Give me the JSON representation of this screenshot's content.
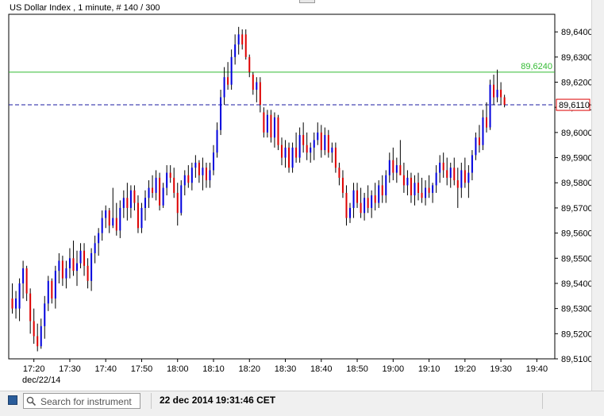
{
  "header": {
    "title": "US Dollar Index , 1 minute, # 140 / 300"
  },
  "toolbar": {
    "search_placeholder": "Search for instrument",
    "timestamp": "22 dec 2014 19:31:46 CET"
  },
  "chart_data": {
    "type": "candlestick",
    "y_ticks": [
      "89,6400",
      "89,6300",
      "89,6200",
      "89,6100",
      "89,6000",
      "89,5900",
      "89,5800",
      "89,5700",
      "89,5600",
      "89,5500",
      "89,5400",
      "89,5300",
      "89,5200",
      "89,5100"
    ],
    "y_tick_values": [
      89.64,
      89.63,
      89.62,
      89.61,
      89.6,
      89.59,
      89.58,
      89.57,
      89.56,
      89.55,
      89.54,
      89.53,
      89.52,
      89.51
    ],
    "ylim": [
      89.51,
      89.647
    ],
    "x_ticks": [
      "17:20",
      "17:30",
      "17:40",
      "17:50",
      "18:00",
      "18:10",
      "18:20",
      "18:30",
      "18:40",
      "18:50",
      "19:00",
      "19:10",
      "19:20",
      "19:30",
      "19:40"
    ],
    "x_date_label": "dec/22/14",
    "time_start": "17:13",
    "time_end": "19:45",
    "grid": false,
    "colors": {
      "up": "#0000dd",
      "down": "#dd0000",
      "level": "#33bb33",
      "current": "#1a1aa0",
      "axis": "#000000"
    },
    "horizontal_level": {
      "value": 89.624,
      "label": "89,6240"
    },
    "current_price": {
      "value": 89.611,
      "label": "89,6110"
    },
    "candles": [
      {
        "t": "17:14",
        "o": 89.534,
        "h": 89.54,
        "l": 89.528,
        "c": 89.53
      },
      {
        "t": "17:15",
        "o": 89.53,
        "h": 89.537,
        "l": 89.526,
        "c": 89.534
      },
      {
        "t": "17:16",
        "o": 89.53,
        "h": 89.542,
        "l": 89.525,
        "c": 89.54
      },
      {
        "t": "17:17",
        "o": 89.54,
        "h": 89.549,
        "l": 89.534,
        "c": 89.546
      },
      {
        "t": "17:18",
        "o": 89.546,
        "h": 89.547,
        "l": 89.533,
        "c": 89.536
      },
      {
        "t": "17:19",
        "o": 89.536,
        "h": 89.538,
        "l": 89.52,
        "c": 89.525
      },
      {
        "t": "17:20",
        "o": 89.525,
        "h": 89.53,
        "l": 89.516,
        "c": 89.519
      },
      {
        "t": "17:21",
        "o": 89.519,
        "h": 89.524,
        "l": 89.513,
        "c": 89.515
      },
      {
        "t": "17:22",
        "o": 89.515,
        "h": 89.526,
        "l": 89.514,
        "c": 89.523
      },
      {
        "t": "17:23",
        "o": 89.523,
        "h": 89.535,
        "l": 89.518,
        "c": 89.532
      },
      {
        "t": "17:24",
        "o": 89.532,
        "h": 89.543,
        "l": 89.529,
        "c": 89.541
      },
      {
        "t": "17:25",
        "o": 89.541,
        "h": 89.542,
        "l": 89.532,
        "c": 89.534
      },
      {
        "t": "17:26",
        "o": 89.534,
        "h": 89.547,
        "l": 89.53,
        "c": 89.545
      },
      {
        "t": "17:27",
        "o": 89.545,
        "h": 89.552,
        "l": 89.54,
        "c": 89.549
      },
      {
        "t": "17:28",
        "o": 89.549,
        "h": 89.551,
        "l": 89.539,
        "c": 89.542
      },
      {
        "t": "17:29",
        "o": 89.542,
        "h": 89.549,
        "l": 89.538,
        "c": 89.546
      },
      {
        "t": "17:30",
        "o": 89.546,
        "h": 89.554,
        "l": 89.542,
        "c": 89.55
      },
      {
        "t": "17:31",
        "o": 89.55,
        "h": 89.557,
        "l": 89.543,
        "c": 89.545
      },
      {
        "t": "17:32",
        "o": 89.545,
        "h": 89.553,
        "l": 89.539,
        "c": 89.548
      },
      {
        "t": "17:33",
        "o": 89.548,
        "h": 89.556,
        "l": 89.546,
        "c": 89.553
      },
      {
        "t": "17:34",
        "o": 89.553,
        "h": 89.556,
        "l": 89.543,
        "c": 89.547
      },
      {
        "t": "17:35",
        "o": 89.547,
        "h": 89.55,
        "l": 89.538,
        "c": 89.541
      },
      {
        "t": "17:36",
        "o": 89.541,
        "h": 89.554,
        "l": 89.537,
        "c": 89.552
      },
      {
        "t": "17:37",
        "o": 89.552,
        "h": 89.559,
        "l": 89.548,
        "c": 89.556
      },
      {
        "t": "17:38",
        "o": 89.556,
        "h": 89.562,
        "l": 89.551,
        "c": 89.56
      },
      {
        "t": "17:39",
        "o": 89.56,
        "h": 89.569,
        "l": 89.557,
        "c": 89.566
      },
      {
        "t": "17:40",
        "o": 89.566,
        "h": 89.571,
        "l": 89.562,
        "c": 89.569
      },
      {
        "t": "17:41",
        "o": 89.569,
        "h": 89.57,
        "l": 89.56,
        "c": 89.563
      },
      {
        "t": "17:42",
        "o": 89.563,
        "h": 89.578,
        "l": 89.562,
        "c": 89.566
      },
      {
        "t": "17:43",
        "o": 89.566,
        "h": 89.572,
        "l": 89.559,
        "c": 89.561
      },
      {
        "t": "17:44",
        "o": 89.561,
        "h": 89.573,
        "l": 89.558,
        "c": 89.57
      },
      {
        "t": "17:45",
        "o": 89.57,
        "h": 89.577,
        "l": 89.566,
        "c": 89.574
      },
      {
        "t": "17:46",
        "o": 89.574,
        "h": 89.58,
        "l": 89.565,
        "c": 89.57
      },
      {
        "t": "17:47",
        "o": 89.57,
        "h": 89.579,
        "l": 89.566,
        "c": 89.577
      },
      {
        "t": "17:48",
        "o": 89.577,
        "h": 89.579,
        "l": 89.569,
        "c": 89.572
      },
      {
        "t": "17:49",
        "o": 89.572,
        "h": 89.575,
        "l": 89.56,
        "c": 89.562
      },
      {
        "t": "17:50",
        "o": 89.562,
        "h": 89.572,
        "l": 89.56,
        "c": 89.57
      },
      {
        "t": "17:51",
        "o": 89.57,
        "h": 89.577,
        "l": 89.565,
        "c": 89.574
      },
      {
        "t": "17:52",
        "o": 89.574,
        "h": 89.581,
        "l": 89.57,
        "c": 89.578
      },
      {
        "t": "17:53",
        "o": 89.578,
        "h": 89.583,
        "l": 89.574,
        "c": 89.576
      },
      {
        "t": "17:54",
        "o": 89.576,
        "h": 89.585,
        "l": 89.573,
        "c": 89.582
      },
      {
        "t": "17:55",
        "o": 89.582,
        "h": 89.584,
        "l": 89.569,
        "c": 89.571
      },
      {
        "t": "17:56",
        "o": 89.571,
        "h": 89.58,
        "l": 89.57,
        "c": 89.578
      },
      {
        "t": "17:57",
        "o": 89.578,
        "h": 89.587,
        "l": 89.575,
        "c": 89.584
      },
      {
        "t": "17:58",
        "o": 89.584,
        "h": 89.587,
        "l": 89.58,
        "c": 89.582
      },
      {
        "t": "17:59",
        "o": 89.582,
        "h": 89.586,
        "l": 89.574,
        "c": 89.576
      },
      {
        "t": "18:00",
        "o": 89.576,
        "h": 89.58,
        "l": 89.563,
        "c": 89.568
      },
      {
        "t": "18:01",
        "o": 89.568,
        "h": 89.581,
        "l": 89.567,
        "c": 89.579
      },
      {
        "t": "18:02",
        "o": 89.579,
        "h": 89.585,
        "l": 89.575,
        "c": 89.583
      },
      {
        "t": "18:03",
        "o": 89.583,
        "h": 89.587,
        "l": 89.578,
        "c": 89.58
      },
      {
        "t": "18:04",
        "o": 89.58,
        "h": 89.588,
        "l": 89.577,
        "c": 89.586
      },
      {
        "t": "18:05",
        "o": 89.586,
        "h": 89.591,
        "l": 89.582,
        "c": 89.588
      },
      {
        "t": "18:06",
        "o": 89.588,
        "h": 89.589,
        "l": 89.58,
        "c": 89.583
      },
      {
        "t": "18:07",
        "o": 89.583,
        "h": 89.59,
        "l": 89.577,
        "c": 89.586
      },
      {
        "t": "18:08",
        "o": 89.586,
        "h": 89.588,
        "l": 89.578,
        "c": 89.581
      },
      {
        "t": "18:09",
        "o": 89.581,
        "h": 89.588,
        "l": 89.578,
        "c": 89.585
      },
      {
        "t": "18:10",
        "o": 89.585,
        "h": 89.595,
        "l": 89.583,
        "c": 89.592
      },
      {
        "t": "18:11",
        "o": 89.592,
        "h": 89.604,
        "l": 89.59,
        "c": 89.601
      },
      {
        "t": "18:12",
        "o": 89.601,
        "h": 89.617,
        "l": 89.599,
        "c": 89.614
      },
      {
        "t": "18:13",
        "o": 89.614,
        "h": 89.626,
        "l": 89.611,
        "c": 89.622
      },
      {
        "t": "18:14",
        "o": 89.622,
        "h": 89.628,
        "l": 89.617,
        "c": 89.619
      },
      {
        "t": "18:15",
        "o": 89.619,
        "h": 89.633,
        "l": 89.617,
        "c": 89.63
      },
      {
        "t": "18:16",
        "o": 89.63,
        "h": 89.639,
        "l": 89.627,
        "c": 89.635
      },
      {
        "t": "18:17",
        "o": 89.635,
        "h": 89.642,
        "l": 89.631,
        "c": 89.639
      },
      {
        "t": "18:18",
        "o": 89.639,
        "h": 89.641,
        "l": 89.633,
        "c": 89.635
      },
      {
        "t": "18:19",
        "o": 89.639,
        "h": 89.641,
        "l": 89.629,
        "c": 89.63
      },
      {
        "t": "18:20",
        "o": 89.63,
        "h": 89.631,
        "l": 89.622,
        "c": 89.624
      },
      {
        "t": "18:21",
        "o": 89.623,
        "h": 89.624,
        "l": 89.615,
        "c": 89.617
      },
      {
        "t": "18:22",
        "o": 89.617,
        "h": 89.622,
        "l": 89.612,
        "c": 89.62
      },
      {
        "t": "18:23",
        "o": 89.62,
        "h": 89.622,
        "l": 89.608,
        "c": 89.611
      },
      {
        "t": "18:24",
        "o": 89.608,
        "h": 89.61,
        "l": 89.598,
        "c": 89.6
      },
      {
        "t": "18:25",
        "o": 89.6,
        "h": 89.609,
        "l": 89.598,
        "c": 89.607
      },
      {
        "t": "18:26",
        "o": 89.607,
        "h": 89.609,
        "l": 89.596,
        "c": 89.598
      },
      {
        "t": "18:27",
        "o": 89.598,
        "h": 89.608,
        "l": 89.594,
        "c": 89.606
      },
      {
        "t": "18:28",
        "o": 89.606,
        "h": 89.607,
        "l": 89.593,
        "c": 89.595
      },
      {
        "t": "18:29",
        "o": 89.595,
        "h": 89.598,
        "l": 89.587,
        "c": 89.59
      },
      {
        "t": "18:30",
        "o": 89.59,
        "h": 89.597,
        "l": 89.586,
        "c": 89.594
      },
      {
        "t": "18:31",
        "o": 89.594,
        "h": 89.596,
        "l": 89.584,
        "c": 89.586
      },
      {
        "t": "18:32",
        "o": 89.586,
        "h": 89.596,
        "l": 89.584,
        "c": 89.594
      },
      {
        "t": "18:33",
        "o": 89.594,
        "h": 89.6,
        "l": 89.588,
        "c": 89.59
      },
      {
        "t": "18:34",
        "o": 89.59,
        "h": 89.602,
        "l": 89.588,
        "c": 89.599
      },
      {
        "t": "18:35",
        "o": 89.599,
        "h": 89.604,
        "l": 89.592,
        "c": 89.595
      },
      {
        "t": "18:36",
        "o": 89.595,
        "h": 89.6,
        "l": 89.589,
        "c": 89.592
      },
      {
        "t": "18:37",
        "o": 89.592,
        "h": 89.596,
        "l": 89.588,
        "c": 89.594
      },
      {
        "t": "18:38",
        "o": 89.594,
        "h": 89.6,
        "l": 89.589,
        "c": 89.597
      },
      {
        "t": "18:39",
        "o": 89.597,
        "h": 89.604,
        "l": 89.595,
        "c": 89.6
      },
      {
        "t": "18:40",
        "o": 89.6,
        "h": 89.603,
        "l": 89.59,
        "c": 89.593
      },
      {
        "t": "18:41",
        "o": 89.593,
        "h": 89.602,
        "l": 89.591,
        "c": 89.599
      },
      {
        "t": "18:42",
        "o": 89.599,
        "h": 89.601,
        "l": 89.59,
        "c": 89.592
      },
      {
        "t": "18:43",
        "o": 89.592,
        "h": 89.596,
        "l": 89.588,
        "c": 89.594
      },
      {
        "t": "18:44",
        "o": 89.594,
        "h": 89.596,
        "l": 89.584,
        "c": 89.586
      },
      {
        "t": "18:45",
        "o": 89.586,
        "h": 89.588,
        "l": 89.579,
        "c": 89.582
      },
      {
        "t": "18:46",
        "o": 89.582,
        "h": 89.585,
        "l": 89.574,
        "c": 89.576
      },
      {
        "t": "18:47",
        "o": 89.576,
        "h": 89.579,
        "l": 89.563,
        "c": 89.566
      },
      {
        "t": "18:48",
        "o": 89.566,
        "h": 89.572,
        "l": 89.564,
        "c": 89.57
      },
      {
        "t": "18:49",
        "o": 89.57,
        "h": 89.58,
        "l": 89.566,
        "c": 89.577
      },
      {
        "t": "18:50",
        "o": 89.577,
        "h": 89.58,
        "l": 89.57,
        "c": 89.572
      },
      {
        "t": "18:51",
        "o": 89.572,
        "h": 89.578,
        "l": 89.566,
        "c": 89.568
      },
      {
        "t": "18:52",
        "o": 89.568,
        "h": 89.576,
        "l": 89.565,
        "c": 89.574
      },
      {
        "t": "18:53",
        "o": 89.574,
        "h": 89.579,
        "l": 89.568,
        "c": 89.57
      },
      {
        "t": "18:54",
        "o": 89.57,
        "h": 89.577,
        "l": 89.566,
        "c": 89.575
      },
      {
        "t": "18:55",
        "o": 89.575,
        "h": 89.58,
        "l": 89.569,
        "c": 89.572
      },
      {
        "t": "18:56",
        "o": 89.572,
        "h": 89.581,
        "l": 89.57,
        "c": 89.579
      },
      {
        "t": "18:57",
        "o": 89.579,
        "h": 89.583,
        "l": 89.572,
        "c": 89.575
      },
      {
        "t": "18:58",
        "o": 89.575,
        "h": 89.585,
        "l": 89.572,
        "c": 89.583
      },
      {
        "t": "18:59",
        "o": 89.583,
        "h": 89.592,
        "l": 89.58,
        "c": 89.589
      },
      {
        "t": "19:00",
        "o": 89.589,
        "h": 89.594,
        "l": 89.581,
        "c": 89.584
      },
      {
        "t": "19:01",
        "o": 89.584,
        "h": 89.59,
        "l": 89.58,
        "c": 89.587
      },
      {
        "t": "19:02",
        "o": 89.587,
        "h": 89.597,
        "l": 89.584,
        "c": 89.583
      },
      {
        "t": "19:03",
        "o": 89.583,
        "h": 89.588,
        "l": 89.576,
        "c": 89.579
      },
      {
        "t": "19:04",
        "o": 89.579,
        "h": 89.585,
        "l": 89.575,
        "c": 89.582
      },
      {
        "t": "19:05",
        "o": 89.582,
        "h": 89.584,
        "l": 89.572,
        "c": 89.575
      },
      {
        "t": "19:06",
        "o": 89.575,
        "h": 89.583,
        "l": 89.571,
        "c": 89.58
      },
      {
        "t": "19:07",
        "o": 89.58,
        "h": 89.584,
        "l": 89.573,
        "c": 89.576
      },
      {
        "t": "19:08",
        "o": 89.576,
        "h": 89.582,
        "l": 89.572,
        "c": 89.574
      },
      {
        "t": "19:09",
        "o": 89.574,
        "h": 89.581,
        "l": 89.571,
        "c": 89.578
      },
      {
        "t": "19:10",
        "o": 89.578,
        "h": 89.583,
        "l": 89.574,
        "c": 89.576
      },
      {
        "t": "19:11",
        "o": 89.576,
        "h": 89.58,
        "l": 89.572,
        "c": 89.579
      },
      {
        "t": "19:12",
        "o": 89.579,
        "h": 89.587,
        "l": 89.576,
        "c": 89.584
      },
      {
        "t": "19:13",
        "o": 89.584,
        "h": 89.591,
        "l": 89.58,
        "c": 89.588
      },
      {
        "t": "19:14",
        "o": 89.588,
        "h": 89.592,
        "l": 89.582,
        "c": 89.585
      },
      {
        "t": "19:15",
        "o": 89.585,
        "h": 89.59,
        "l": 89.579,
        "c": 89.582
      },
      {
        "t": "19:16",
        "o": 89.582,
        "h": 89.588,
        "l": 89.578,
        "c": 89.586
      },
      {
        "t": "19:17",
        "o": 89.586,
        "h": 89.59,
        "l": 89.579,
        "c": 89.581
      },
      {
        "t": "19:18",
        "o": 89.581,
        "h": 89.586,
        "l": 89.57,
        "c": 89.578
      },
      {
        "t": "19:19",
        "o": 89.578,
        "h": 89.588,
        "l": 89.574,
        "c": 89.585
      },
      {
        "t": "19:20",
        "o": 89.585,
        "h": 89.59,
        "l": 89.578,
        "c": 89.58
      },
      {
        "t": "19:21",
        "o": 89.58,
        "h": 89.587,
        "l": 89.574,
        "c": 89.584
      },
      {
        "t": "19:22",
        "o": 89.584,
        "h": 89.593,
        "l": 89.581,
        "c": 89.591
      },
      {
        "t": "19:23",
        "o": 89.591,
        "h": 89.6,
        "l": 89.589,
        "c": 89.598
      },
      {
        "t": "19:24",
        "o": 89.598,
        "h": 89.603,
        "l": 89.592,
        "c": 89.595
      },
      {
        "t": "19:25",
        "o": 89.595,
        "h": 89.609,
        "l": 89.593,
        "c": 89.606
      },
      {
        "t": "19:26",
        "o": 89.606,
        "h": 89.612,
        "l": 89.6,
        "c": 89.602
      },
      {
        "t": "19:27",
        "o": 89.602,
        "h": 89.621,
        "l": 89.601,
        "c": 89.619
      },
      {
        "t": "19:28",
        "o": 89.619,
        "h": 89.623,
        "l": 89.611,
        "c": 89.614
      },
      {
        "t": "19:29",
        "o": 89.614,
        "h": 89.625,
        "l": 89.612,
        "c": 89.617
      },
      {
        "t": "19:30",
        "o": 89.617,
        "h": 89.62,
        "l": 89.611,
        "c": 89.614
      },
      {
        "t": "19:31",
        "o": 89.614,
        "h": 89.615,
        "l": 89.61,
        "c": 89.611
      }
    ]
  }
}
